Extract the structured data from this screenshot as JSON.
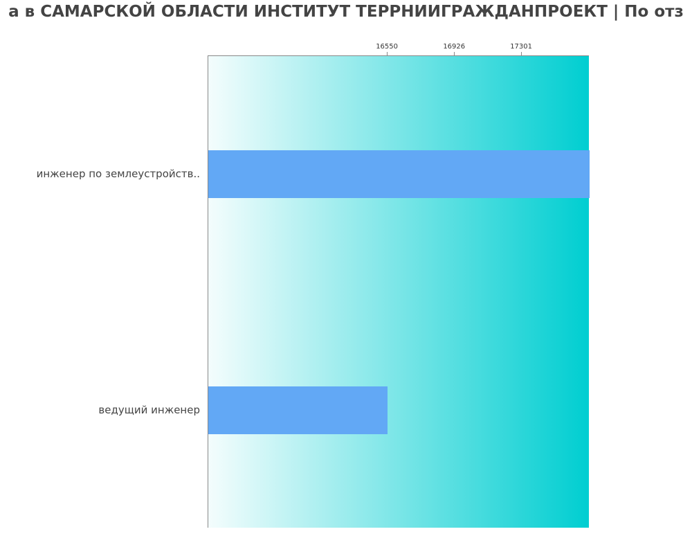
{
  "chart_data": {
    "type": "bar",
    "orientation": "horizontal",
    "title": "а в САМАРСКОЙ ОБЛАСТИ ИНСТИТУТ ТЕРРНИИГРАЖДАНПРОЕКТ | По отз",
    "categories": [
      "инженер по землеустройств..",
      "ведущий инженер"
    ],
    "values": [
      17680,
      16550
    ],
    "xticks": [
      16550,
      16926,
      17301
    ],
    "xlim": [
      15547,
      17680
    ],
    "xaxis_position": "top",
    "grid": false,
    "bar_color": "#62a8f5",
    "background_gradient": [
      "#f4fdfd",
      "#00ced1"
    ]
  }
}
